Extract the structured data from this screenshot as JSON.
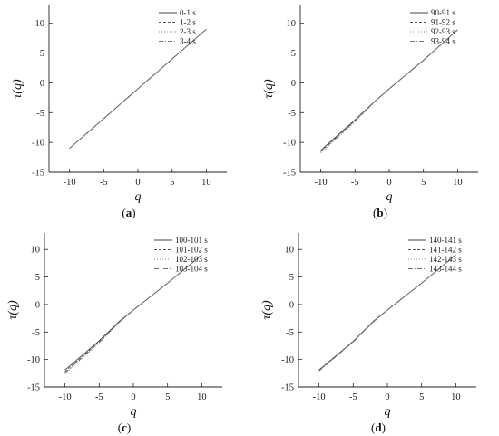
{
  "chart_data": [
    {
      "type": "line",
      "panel_label": "(a)",
      "panel_letter": "a",
      "xlabel": "q",
      "ylabel": "τ(q)",
      "xlim": [
        -13,
        13
      ],
      "ylim": [
        -15,
        13
      ],
      "xticks": [
        -10,
        -5,
        0,
        5,
        10
      ],
      "yticks": [
        -15,
        -10,
        -5,
        0,
        5,
        10
      ],
      "legend_position": "top-right",
      "series": [
        {
          "name": "0-1 s",
          "style": "solid",
          "x": [
            -10,
            10
          ],
          "y": [
            -11,
            9
          ]
        },
        {
          "name": "1-2 s",
          "style": "dash",
          "x": [
            -10,
            10
          ],
          "y": [
            -11,
            9
          ]
        },
        {
          "name": "2-3 s",
          "style": "dot",
          "x": [
            -10,
            10
          ],
          "y": [
            -11,
            9
          ]
        },
        {
          "name": "3-4 s",
          "style": "dashdot",
          "x": [
            -10,
            10
          ],
          "y": [
            -11,
            9
          ]
        }
      ]
    },
    {
      "type": "line",
      "panel_label": "(b)",
      "panel_letter": "b",
      "xlabel": "q",
      "ylabel": "τ(q)",
      "xlim": [
        -13,
        13
      ],
      "ylim": [
        -15,
        13
      ],
      "xticks": [
        -10,
        -5,
        0,
        5,
        10
      ],
      "yticks": [
        -15,
        -10,
        -5,
        0,
        5,
        10
      ],
      "legend_position": "top-right",
      "series": [
        {
          "name": "90-91 s",
          "style": "solid",
          "x": [
            -10,
            -5,
            -2,
            0,
            5,
            10
          ],
          "y": [
            -11.3,
            -6.2,
            -3.0,
            -1.0,
            3.8,
            8.9
          ]
        },
        {
          "name": "91-92 s",
          "style": "dash",
          "x": [
            -10,
            -5,
            -2,
            0,
            5,
            10
          ],
          "y": [
            -11.5,
            -6.3,
            -3.0,
            -1.0,
            3.8,
            8.9
          ]
        },
        {
          "name": "92-93 s",
          "style": "dot",
          "x": [
            -10,
            -5,
            -2,
            0,
            5,
            10
          ],
          "y": [
            -11.8,
            -6.6,
            -3.1,
            -1.0,
            3.8,
            8.9
          ]
        },
        {
          "name": "93-94 s",
          "style": "dashdot",
          "x": [
            -10,
            -5,
            -2,
            0,
            5,
            10
          ],
          "y": [
            -11.6,
            -6.4,
            -3.0,
            -1.0,
            3.8,
            8.9
          ]
        }
      ]
    },
    {
      "type": "line",
      "panel_label": "(c)",
      "panel_letter": "c",
      "xlabel": "q",
      "ylabel": "τ(q)",
      "xlim": [
        -13,
        13
      ],
      "ylim": [
        -15,
        13
      ],
      "xticks": [
        -10,
        -5,
        0,
        5,
        10
      ],
      "yticks": [
        -15,
        -10,
        -5,
        0,
        5,
        10
      ],
      "legend_position": "top-right",
      "series": [
        {
          "name": "100-101 s",
          "style": "solid",
          "x": [
            -10,
            -5,
            -2,
            0,
            5,
            10
          ],
          "y": [
            -11.9,
            -6.6,
            -3.0,
            -1.0,
            3.9,
            9.0
          ]
        },
        {
          "name": "101-102 s",
          "style": "dash",
          "x": [
            -10,
            -5,
            -2,
            0,
            5,
            10
          ],
          "y": [
            -12.2,
            -6.8,
            -3.1,
            -1.0,
            3.9,
            9.0
          ]
        },
        {
          "name": "102-103 s",
          "style": "dot",
          "x": [
            -10,
            -5,
            -2,
            0,
            5,
            10
          ],
          "y": [
            -12.6,
            -7.0,
            -3.2,
            -1.0,
            3.9,
            9.0
          ]
        },
        {
          "name": "103-104 s",
          "style": "dashdot",
          "x": [
            -10,
            -5,
            -2,
            0,
            5,
            10
          ],
          "y": [
            -12.4,
            -6.9,
            -3.1,
            -1.0,
            3.9,
            9.0
          ]
        }
      ]
    },
    {
      "type": "line",
      "panel_label": "(d)",
      "panel_letter": "d",
      "xlabel": "q",
      "ylabel": "τ(q)",
      "xlim": [
        -13,
        13
      ],
      "ylim": [
        -15,
        13
      ],
      "xticks": [
        -10,
        -5,
        0,
        5,
        10
      ],
      "yticks": [
        -15,
        -10,
        -5,
        0,
        5,
        10
      ],
      "legend_position": "top-right",
      "series": [
        {
          "name": "140-141 s",
          "style": "solid",
          "x": [
            -10,
            -5,
            -2,
            0,
            5,
            10
          ],
          "y": [
            -11.9,
            -6.7,
            -3.0,
            -1.0,
            3.9,
            9.0
          ]
        },
        {
          "name": "141-142 s",
          "style": "dash",
          "x": [
            -10,
            -5,
            -2,
            0,
            5,
            10
          ],
          "y": [
            -12.0,
            -6.7,
            -3.0,
            -1.0,
            3.9,
            9.0
          ]
        },
        {
          "name": "142-143 s",
          "style": "dot",
          "x": [
            -10,
            -5,
            -2,
            0,
            5,
            10
          ],
          "y": [
            -12.0,
            -6.8,
            -3.1,
            -1.0,
            3.9,
            9.0
          ]
        },
        {
          "name": "143-144 s",
          "style": "dashdot",
          "x": [
            -10,
            -5,
            -2,
            0,
            5,
            10
          ],
          "y": [
            -12.1,
            -6.8,
            -3.1,
            -1.0,
            3.9,
            9.0
          ]
        }
      ]
    }
  ]
}
